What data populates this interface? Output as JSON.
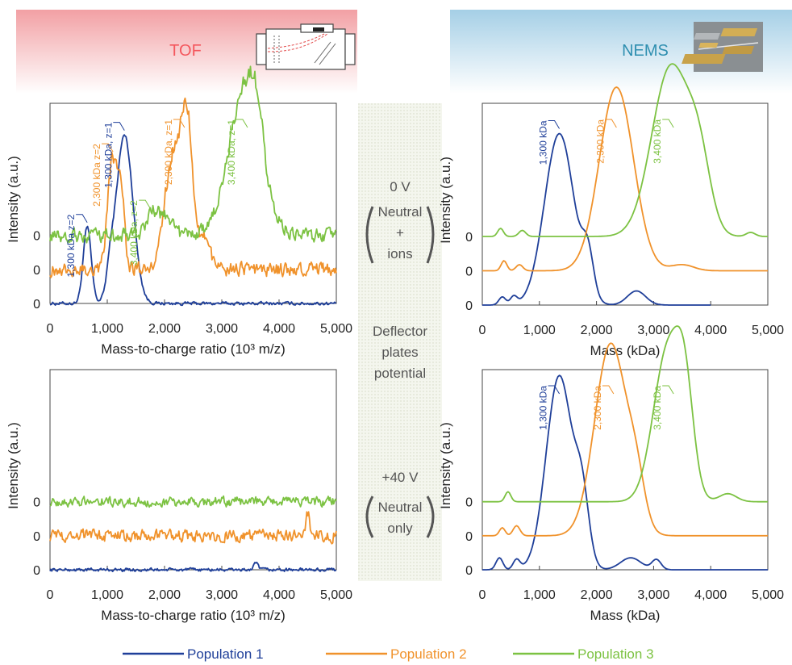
{
  "header": {
    "left_title": "TOF",
    "right_title": "NEMS",
    "left_icon": "tof-instrument-icon",
    "right_icon": "nems-device-icon",
    "left_color": "#f4575d",
    "right_color": "#2f8fb0"
  },
  "middle": {
    "condition_1_voltage": "0 V",
    "condition_1_line1": "Neutral",
    "condition_1_line2": "+",
    "condition_1_line3": "ions",
    "deflector_line1": "Deflector",
    "deflector_line2": "plates",
    "deflector_line3": "potential",
    "condition_2_voltage": "+40 V",
    "condition_2_line1": "Neutral",
    "condition_2_line2": "only"
  },
  "legend": [
    {
      "label": "Population 1",
      "color": "#1f3f99"
    },
    {
      "label": "Population 2",
      "color": "#f0922b"
    },
    {
      "label": "Population 3",
      "color": "#7cc242"
    }
  ],
  "chart_data": [
    {
      "id": "tof_0V",
      "type": "line",
      "xlabel": "Mass-to-charge ratio (10³ m/z)",
      "ylabel": "Intensity (a.u.)",
      "xlim": [
        0,
        5000
      ],
      "xticks": [
        "0",
        "1,000",
        "2,000",
        "3,000",
        "4,000",
        "5,000"
      ],
      "offset_labels": [
        "0",
        "0",
        "0"
      ],
      "series": [
        {
          "color": "#1f3f99",
          "offset": 0,
          "noise": 0.012,
          "peaks": [
            [
              650,
              0.38,
              70
            ],
            [
              1300,
              0.84,
              150
            ],
            [
              1050,
              0.1,
              60
            ]
          ]
        },
        {
          "color": "#f0922b",
          "offset": 0.17,
          "noise": 0.05,
          "peaks": [
            [
              1100,
              0.55,
              90
            ],
            [
              1250,
              0.3,
              60
            ],
            [
              2150,
              0.56,
              150
            ],
            [
              2400,
              0.7,
              100
            ],
            [
              2700,
              0.15,
              100
            ]
          ]
        },
        {
          "color": "#7cc242",
          "offset": 0.34,
          "noise": 0.05,
          "peaks": [
            [
              1800,
              0.12,
              120
            ],
            [
              2050,
              0.08,
              100
            ],
            [
              3400,
              0.72,
              280
            ],
            [
              3600,
              0.2,
              120
            ]
          ]
        }
      ],
      "annotations": [
        {
          "text": "1,300 kDa z=2",
          "color": "#1f3f99",
          "x": 650
        },
        {
          "text": "2,300 kDa z=2",
          "color": "#f0922b",
          "x": 1100
        },
        {
          "text": "1,300 kDa, z=1",
          "color": "#1f3f99",
          "x": 1300
        },
        {
          "text": "3,400 kDa, z=2",
          "color": "#7cc242",
          "x": 1750
        },
        {
          "text": "2,300 kDa, z=1",
          "color": "#f0922b",
          "x": 2350
        },
        {
          "text": "3,400 kDa, z=1",
          "color": "#7cc242",
          "x": 3450
        }
      ]
    },
    {
      "id": "nems_0V",
      "type": "line",
      "xlabel": "Mass (kDa)",
      "ylabel": "Intensity (a.u.)",
      "xlim": [
        0,
        5000
      ],
      "xticks": [
        "0",
        "1,000",
        "2,000",
        "3,000",
        "4,000",
        "5,000"
      ],
      "offset_labels": [
        "0",
        "0",
        "0"
      ],
      "series": [
        {
          "color": "#1f3f99",
          "offset": 0,
          "noise": 0.0,
          "xmax": 4000,
          "peaks": [
            [
              350,
              0.04,
              60
            ],
            [
              550,
              0.04,
              60
            ],
            [
              1350,
              0.85,
              260
            ],
            [
              1850,
              0.2,
              100
            ],
            [
              2700,
              0.07,
              160
            ]
          ]
        },
        {
          "color": "#f0922b",
          "offset": 0.17,
          "noise": 0.0,
          "peaks": [
            [
              380,
              0.05,
              50
            ],
            [
              650,
              0.03,
              60
            ],
            [
              2350,
              0.91,
              300
            ],
            [
              3500,
              0.03,
              200
            ]
          ]
        },
        {
          "color": "#7cc242",
          "offset": 0.34,
          "noise": 0.0,
          "peaks": [
            [
              320,
              0.04,
              50
            ],
            [
              700,
              0.03,
              60
            ],
            [
              3300,
              0.84,
              330
            ],
            [
              3800,
              0.3,
              200
            ],
            [
              4700,
              0.02,
              80
            ]
          ]
        }
      ],
      "annotations": [
        {
          "text": "1,300 kDa",
          "color": "#1f3f99",
          "x": 1350
        },
        {
          "text": "2,300 kDa",
          "color": "#f0922b",
          "x": 2350
        },
        {
          "text": "3,400 kDa",
          "color": "#7cc242",
          "x": 3350
        }
      ]
    },
    {
      "id": "tof_40V",
      "type": "line",
      "xlabel": "Mass-to-charge ratio (10³ m/z)",
      "ylabel": "Intensity (a.u.)",
      "xlim": [
        0,
        5000
      ],
      "xticks": [
        "0",
        "1,000",
        "2,000",
        "3,000",
        "4,000",
        "5,000"
      ],
      "offset_labels": [
        "0",
        "0",
        "0"
      ],
      "series": [
        {
          "color": "#1f3f99",
          "offset": 0,
          "noise": 0.012,
          "peaks": [
            [
              3600,
              0.03,
              40
            ]
          ]
        },
        {
          "color": "#f0922b",
          "offset": 0.17,
          "noise": 0.045,
          "peaks": [
            [
              4500,
              0.12,
              30
            ]
          ]
        },
        {
          "color": "#7cc242",
          "offset": 0.34,
          "noise": 0.035,
          "peaks": []
        }
      ],
      "annotations": []
    },
    {
      "id": "nems_40V",
      "type": "line",
      "xlabel": "Mass (kDa)",
      "ylabel": "Intensity (a.u.)",
      "xlim": [
        0,
        5000
      ],
      "xticks": [
        "0",
        "1,000",
        "2,000",
        "3,000",
        "4,000",
        "5,000"
      ],
      "offset_labels": [
        "0",
        "0",
        "0"
      ],
      "series": [
        {
          "color": "#1f3f99",
          "offset": 0,
          "noise": 0.0,
          "peaks": [
            [
              300,
              0.06,
              60
            ],
            [
              600,
              0.05,
              60
            ],
            [
              1350,
              0.97,
              230
            ],
            [
              1750,
              0.3,
              120
            ],
            [
              2600,
              0.06,
              180
            ],
            [
              3050,
              0.05,
              80
            ]
          ]
        },
        {
          "color": "#f0922b",
          "offset": 0.17,
          "noise": 0.0,
          "peaks": [
            [
              350,
              0.04,
              50
            ],
            [
              600,
              0.05,
              60
            ],
            [
              2250,
              0.96,
              280
            ],
            [
              2700,
              0.2,
              150
            ]
          ]
        },
        {
          "color": "#7cc242",
          "offset": 0.34,
          "noise": 0.0,
          "peaks": [
            [
              450,
              0.05,
              50
            ],
            [
              3250,
              0.76,
              250
            ],
            [
              3550,
              0.4,
              150
            ],
            [
              4300,
              0.04,
              150
            ]
          ]
        }
      ],
      "annotations": [
        {
          "text": "1,300 kDa",
          "color": "#1f3f99",
          "x": 1350
        },
        {
          "text": "2,300 kDa",
          "color": "#f0922b",
          "x": 2300
        },
        {
          "text": "3,400 kDa",
          "color": "#7cc242",
          "x": 3350
        }
      ]
    }
  ]
}
